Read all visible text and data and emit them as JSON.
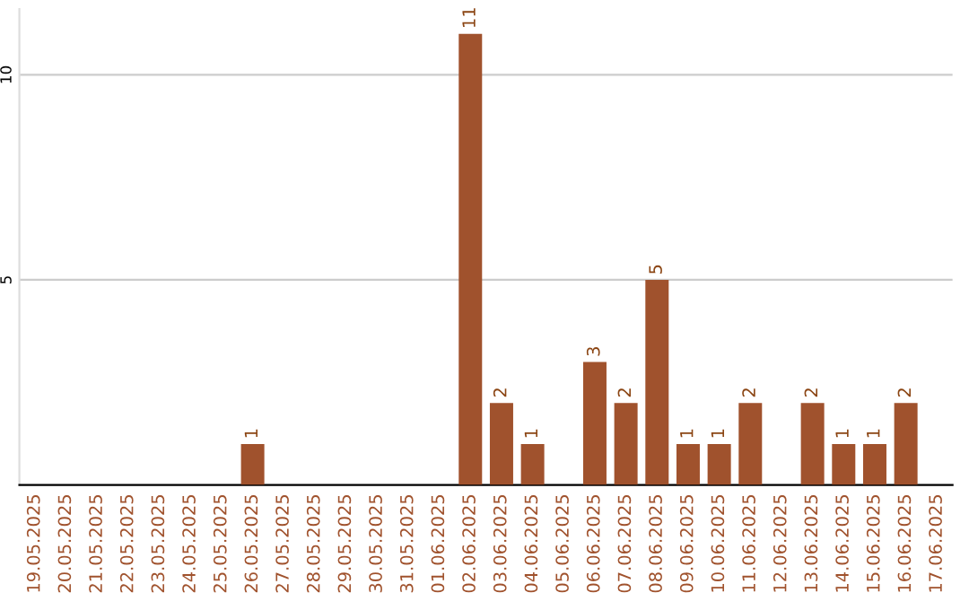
{
  "chart_data": {
    "type": "bar",
    "categories": [
      "19.05.2025",
      "20.05.2025",
      "21.05.2025",
      "22.05.2025",
      "23.05.2025",
      "24.05.2025",
      "25.05.2025",
      "26.05.2025",
      "27.05.2025",
      "28.05.2025",
      "29.05.2025",
      "30.05.2025",
      "31.05.2025",
      "01.06.2025",
      "02.06.2025",
      "03.06.2025",
      "04.06.2025",
      "05.06.2025",
      "06.06.2025",
      "07.06.2025",
      "08.06.2025",
      "09.06.2025",
      "10.06.2025",
      "11.06.2025",
      "12.06.2025",
      "13.06.2025",
      "14.06.2025",
      "15.06.2025",
      "16.06.2025",
      "17.06.2025"
    ],
    "values": [
      0,
      0,
      0,
      0,
      0,
      0,
      0,
      1,
      0,
      0,
      0,
      0,
      0,
      0,
      11,
      2,
      1,
      0,
      3,
      2,
      5,
      1,
      1,
      2,
      0,
      2,
      1,
      1,
      2,
      0
    ],
    "value_labels": [
      null,
      null,
      null,
      null,
      null,
      null,
      null,
      "1",
      null,
      null,
      null,
      null,
      null,
      null,
      "11",
      "2",
      "1",
      null,
      "3",
      "2",
      "5",
      "1",
      "1",
      "2",
      null,
      "2",
      "1",
      "1",
      "2",
      null
    ],
    "color": "#a0522d",
    "ylim": [
      0,
      11.6
    ],
    "yticks": [
      5,
      10
    ],
    "grid": "y"
  }
}
